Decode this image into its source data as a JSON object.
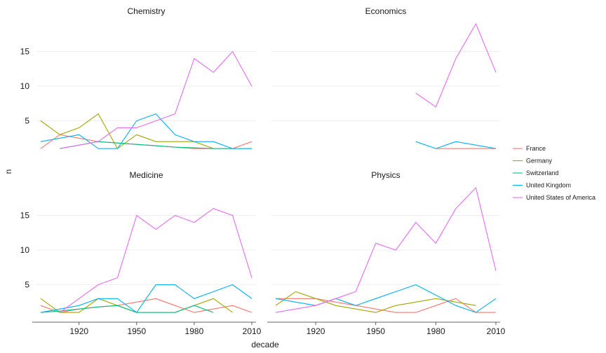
{
  "chart_data": {
    "type": "line",
    "xlabel": "decade",
    "ylabel": "n",
    "x_ticks": [
      1920,
      1950,
      1980,
      2010
    ],
    "y_ticks": [
      5,
      10,
      15
    ],
    "xlim": [
      1900,
      2010
    ],
    "ylim": [
      0,
      19
    ],
    "legend_position": "right",
    "legend": [
      {
        "name": "France",
        "color": "#F8766D"
      },
      {
        "name": "Germany",
        "color": "#A3A500"
      },
      {
        "name": "Switzerland",
        "color": "#00BF7D"
      },
      {
        "name": "United Kingdom",
        "color": "#00B0F6"
      },
      {
        "name": "United States of America",
        "color": "#E76BF3"
      }
    ],
    "panels": [
      {
        "title": "Chemistry",
        "series": [
          {
            "name": "France",
            "x": [
              1900,
              1910,
              1920,
              1930,
              1940,
              1950,
              1960,
              1970,
              1980,
              1990,
              2000,
              2010
            ],
            "y": [
              1,
              3,
              2.5,
              2,
              1.8,
              1.6,
              1.4,
              1.2,
              1,
              1,
              1,
              2
            ]
          },
          {
            "name": "Germany",
            "x": [
              1900,
              1910,
              1920,
              1930,
              1940,
              1950,
              1960,
              1970,
              1980,
              1990
            ],
            "y": [
              5,
              3,
              4,
              6,
              1,
              3,
              2,
              2,
              2,
              1
            ]
          },
          {
            "name": "Switzerland",
            "x": [
              1910,
              1920,
              1930,
              1940,
              1950,
              1960,
              1970,
              1980,
              1990,
              2000,
              2010
            ],
            "y": [
              1,
              1.5,
              2,
              1.8,
              1.6,
              1.4,
              1.2,
              1.1,
              1,
              1,
              1
            ]
          },
          {
            "name": "United Kingdom",
            "x": [
              1900,
              1910,
              1920,
              1930,
              1940,
              1950,
              1960,
              1970,
              1980,
              1990,
              2000,
              2010
            ],
            "y": [
              2,
              2.5,
              3,
              1,
              1,
              5,
              6,
              3,
              2,
              2,
              1,
              1
            ]
          },
          {
            "name": "United States of America",
            "x": [
              1910,
              1920,
              1930,
              1940,
              1950,
              1960,
              1970,
              1980,
              1990,
              2000,
              2010
            ],
            "y": [
              1,
              1.5,
              2,
              4,
              4,
              5,
              6,
              14,
              12,
              15,
              10
            ]
          }
        ]
      },
      {
        "title": "Economics",
        "series": [
          {
            "name": "France",
            "x": [
              1980,
              1990,
              2000,
              2010
            ],
            "y": [
              1,
              1,
              1,
              1
            ]
          },
          {
            "name": "United Kingdom",
            "x": [
              1970,
              1980,
              1990,
              2000,
              2010
            ],
            "y": [
              2,
              1,
              2,
              1.5,
              1
            ]
          },
          {
            "name": "United States of America",
            "x": [
              1970,
              1980,
              1990,
              2000,
              2010
            ],
            "y": [
              9,
              7,
              14,
              19,
              12
            ]
          }
        ]
      },
      {
        "title": "Medicine",
        "series": [
          {
            "name": "France",
            "x": [
              1900,
              1910,
              1920,
              1930,
              1940,
              1950,
              1960,
              1970,
              1980,
              1990,
              2000,
              2010
            ],
            "y": [
              2,
              1,
              1.5,
              1.8,
              2,
              2.5,
              3,
              2,
              1,
              1.5,
              2,
              1
            ]
          },
          {
            "name": "Germany",
            "x": [
              1900,
              1910,
              1920,
              1930,
              1940,
              1950,
              1960,
              1970,
              1980,
              1990,
              2000
            ],
            "y": [
              3,
              1,
              1,
              3,
              2,
              1,
              1,
              1,
              2,
              3,
              1
            ]
          },
          {
            "name": "Switzerland",
            "x": [
              1900,
              1910,
              1920,
              1930,
              1940,
              1950,
              1960,
              1970,
              1980,
              1990
            ],
            "y": [
              1,
              1.2,
              1.5,
              1.8,
              2,
              1,
              1,
              1,
              2,
              1
            ]
          },
          {
            "name": "United Kingdom",
            "x": [
              1900,
              1910,
              1920,
              1930,
              1940,
              1950,
              1960,
              1970,
              1980,
              1990,
              2000,
              2010
            ],
            "y": [
              1,
              1.5,
              2,
              3,
              3,
              1,
              5,
              5,
              3,
              4,
              5,
              3
            ]
          },
          {
            "name": "United States of America",
            "x": [
              1910,
              1920,
              1930,
              1940,
              1950,
              1960,
              1970,
              1980,
              1990,
              2000,
              2010
            ],
            "y": [
              1,
              3,
              5,
              6,
              15,
              13,
              15,
              14,
              16,
              15,
              6
            ]
          }
        ]
      },
      {
        "title": "Physics",
        "series": [
          {
            "name": "France",
            "x": [
              1900,
              1910,
              1920,
              1930,
              1940,
              1950,
              1960,
              1970,
              1980,
              1990,
              2000,
              2010
            ],
            "y": [
              3,
              3,
              3,
              2.5,
              2,
              1.5,
              1,
              1,
              2,
              3,
              1,
              1
            ]
          },
          {
            "name": "Germany",
            "x": [
              1900,
              1910,
              1920,
              1930,
              1940,
              1950,
              1960,
              1970,
              1980,
              1990,
              2000
            ],
            "y": [
              2,
              4,
              3,
              2,
              1.5,
              1,
              2,
              2.5,
              3,
              2.5,
              2
            ]
          },
          {
            "name": "United Kingdom",
            "x": [
              1900,
              1910,
              1920,
              1930,
              1940,
              1950,
              1960,
              1970,
              1980,
              1990,
              2000,
              2010
            ],
            "y": [
              3,
              2.5,
              2,
              3,
              2,
              3,
              4,
              5,
              3.5,
              2,
              1,
              3
            ]
          },
          {
            "name": "United States of America",
            "x": [
              1900,
              1910,
              1920,
              1930,
              1940,
              1950,
              1960,
              1970,
              1980,
              1990,
              2000,
              2010
            ],
            "y": [
              1,
              1.5,
              2,
              3,
              4,
              11,
              10,
              14,
              11,
              16,
              19,
              7
            ]
          }
        ]
      }
    ]
  }
}
